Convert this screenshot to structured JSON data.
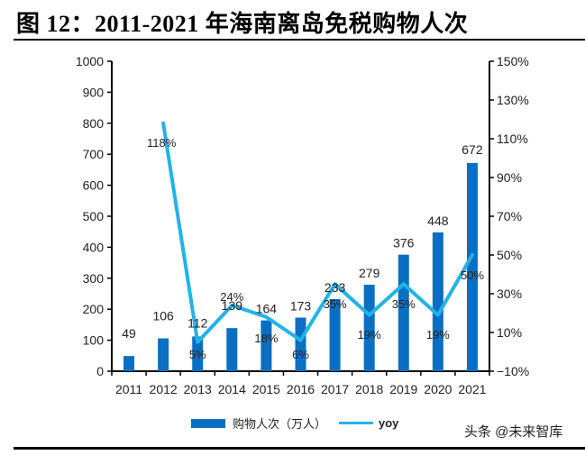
{
  "title": "图 12：2011-2021 年海南离岛免税购物人次",
  "legend": {
    "bar_label": "购物人次（万人）",
    "line_label": "yoy"
  },
  "watermark": "头条 @未来智库",
  "colors": {
    "bar": "#0a6fc2",
    "line": "#22b3e8",
    "axis": "#000000"
  },
  "chart_data": {
    "type": "bar+line",
    "title": "2011-2021 年海南离岛免税购物人次",
    "categories": [
      "2011",
      "2012",
      "2013",
      "2014",
      "2015",
      "2016",
      "2017",
      "2018",
      "2019",
      "2020",
      "2021"
    ],
    "series": [
      {
        "name": "购物人次（万人）",
        "type": "bar",
        "axis": "left",
        "values": [
          49,
          106,
          112,
          139,
          164,
          173,
          233,
          279,
          376,
          448,
          672
        ]
      },
      {
        "name": "yoy",
        "type": "line",
        "axis": "right",
        "values": [
          null,
          118,
          5,
          24,
          18,
          6,
          35,
          19,
          35,
          19,
          50
        ],
        "labels": [
          "",
          "118%",
          "5%",
          "24%",
          "18%",
          "6%",
          "35%",
          "19%",
          "35%",
          "19%",
          "50%"
        ]
      }
    ],
    "left_axis": {
      "ylim": [
        0,
        1000
      ],
      "ticks": [
        "0",
        "100",
        "200",
        "300",
        "400",
        "500",
        "600",
        "700",
        "800",
        "900",
        "1000"
      ]
    },
    "right_axis": {
      "ylim": [
        -10,
        150
      ],
      "ticks": [
        "-10%",
        "10%",
        "30%",
        "50%",
        "70%",
        "90%",
        "110%",
        "130%",
        "150%"
      ]
    },
    "legend_position": "bottom",
    "grid": false
  }
}
